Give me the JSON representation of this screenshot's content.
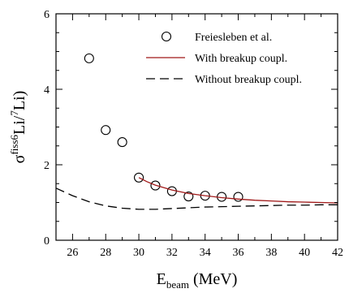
{
  "chart_data": {
    "type": "scatter",
    "xlabel": {
      "main": "E",
      "sub": "beam",
      "tail": " (MeV)"
    },
    "ylabel": {
      "main": "σ",
      "sup1": "fiss",
      "sup2": "6",
      "mid": "Li/",
      "sup3": "7",
      "tail": "Li)"
    },
    "xlim": [
      25,
      42
    ],
    "ylim": [
      0,
      6
    ],
    "xticks": [
      26,
      28,
      30,
      32,
      34,
      36,
      38,
      40,
      42
    ],
    "yticks": [
      0,
      2,
      4,
      6
    ],
    "xminor_step": 1,
    "yminor_step": 0.5,
    "grid": false,
    "legend_position": "top-right",
    "series": [
      {
        "name": "Freiesleben et al.",
        "kind": "markers",
        "marker": "open-circle",
        "color": "#000000",
        "x": [
          27,
          28,
          29,
          30,
          31,
          32,
          33,
          34,
          35,
          36
        ],
        "y": [
          4.82,
          2.92,
          2.6,
          1.66,
          1.45,
          1.3,
          1.16,
          1.18,
          1.15,
          1.15
        ]
      },
      {
        "name": "With breakup coupl.",
        "kind": "line",
        "dash": "solid",
        "color": "#a01818",
        "x": [
          30,
          30.5,
          31,
          32,
          33,
          34,
          35,
          36,
          37,
          38,
          39,
          40,
          41,
          42
        ],
        "y": [
          1.66,
          1.55,
          1.46,
          1.33,
          1.24,
          1.18,
          1.13,
          1.09,
          1.06,
          1.04,
          1.02,
          1.01,
          1.0,
          0.99
        ]
      },
      {
        "name": "Without breakup coupl.",
        "kind": "line",
        "dash": "dashed",
        "color": "#000000",
        "x": [
          25,
          26,
          27,
          28,
          29,
          30,
          31,
          32,
          33,
          34,
          35,
          36,
          37,
          38,
          39,
          40,
          41,
          42
        ],
        "y": [
          1.38,
          1.18,
          1.02,
          0.91,
          0.85,
          0.82,
          0.82,
          0.84,
          0.86,
          0.88,
          0.89,
          0.9,
          0.91,
          0.92,
          0.93,
          0.93,
          0.94,
          0.94
        ]
      }
    ]
  }
}
